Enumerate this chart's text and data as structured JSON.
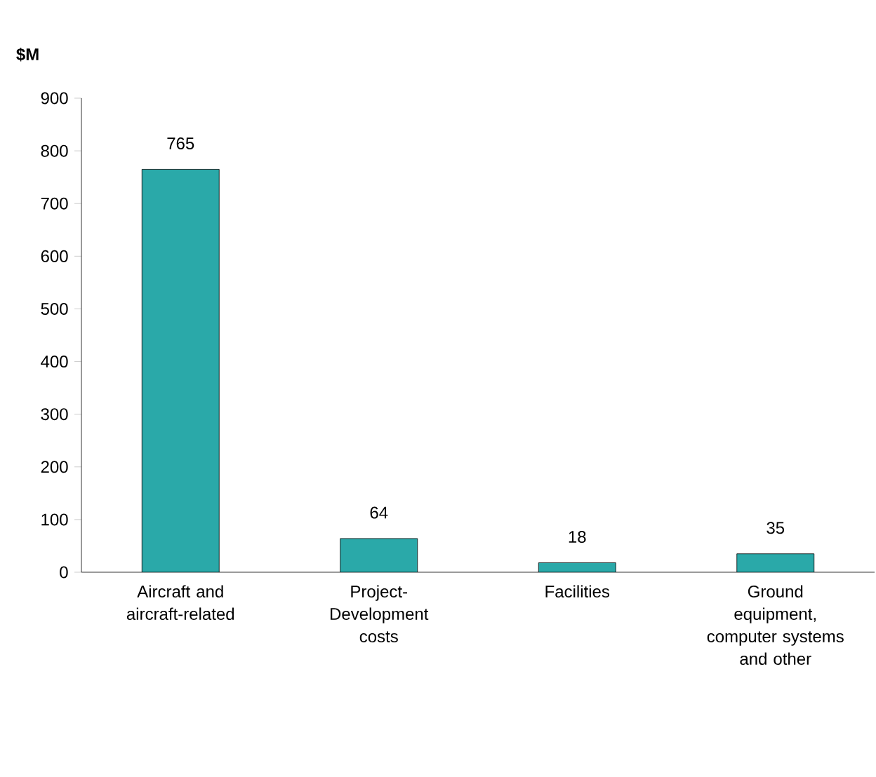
{
  "chart_data": {
    "type": "bar",
    "ylabel": "$M",
    "categories": [
      "Aircraft and aircraft-related",
      "Project-Development costs",
      "Facilities",
      "Ground equipment, computer systems and other"
    ],
    "values": [
      765,
      64,
      18,
      35
    ],
    "color": "#2aa9a9",
    "data_labels": true,
    "ylim": [
      0,
      900
    ],
    "yticks": [
      0,
      100,
      200,
      300,
      400,
      500,
      600,
      700,
      800,
      900
    ],
    "grid": false
  }
}
